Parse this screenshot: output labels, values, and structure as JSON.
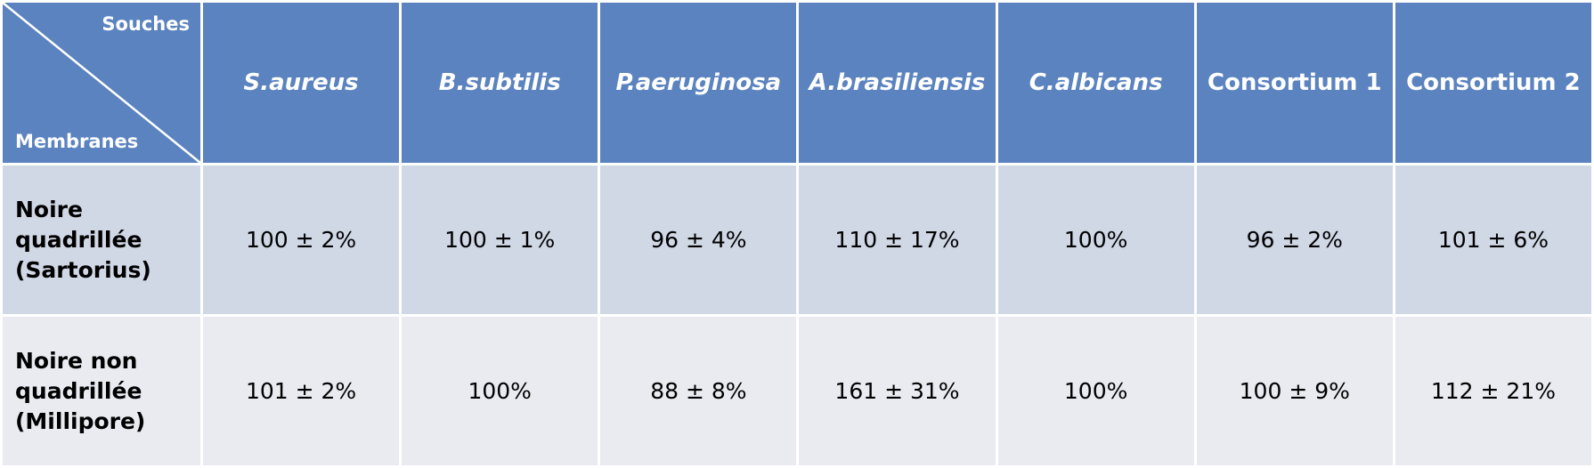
{
  "table": {
    "corner_top": "Souches",
    "corner_bottom": "Membranes",
    "columns": [
      "S.aureus",
      "B.subtilis",
      "P.aeruginosa",
      "A.brasiliensis",
      "C.albicans",
      "Consortium 1",
      "Consortium 2"
    ],
    "rows": [
      {
        "label": "Noire quadrillée (Sartorius)",
        "cells": [
          "100 ± 2%",
          "100 ± 1%",
          "96 ± 4%",
          "110 ± 17%",
          "100%",
          "96 ± 2%",
          "101 ± 6%"
        ]
      },
      {
        "label": "Noire non quadrillée (Millipore)",
        "cells": [
          "101 ± 2%",
          "100%",
          "88 ± 8%",
          "161 ± 31%",
          "100%",
          "100 ± 9%",
          "112 ± 21%"
        ]
      }
    ]
  }
}
